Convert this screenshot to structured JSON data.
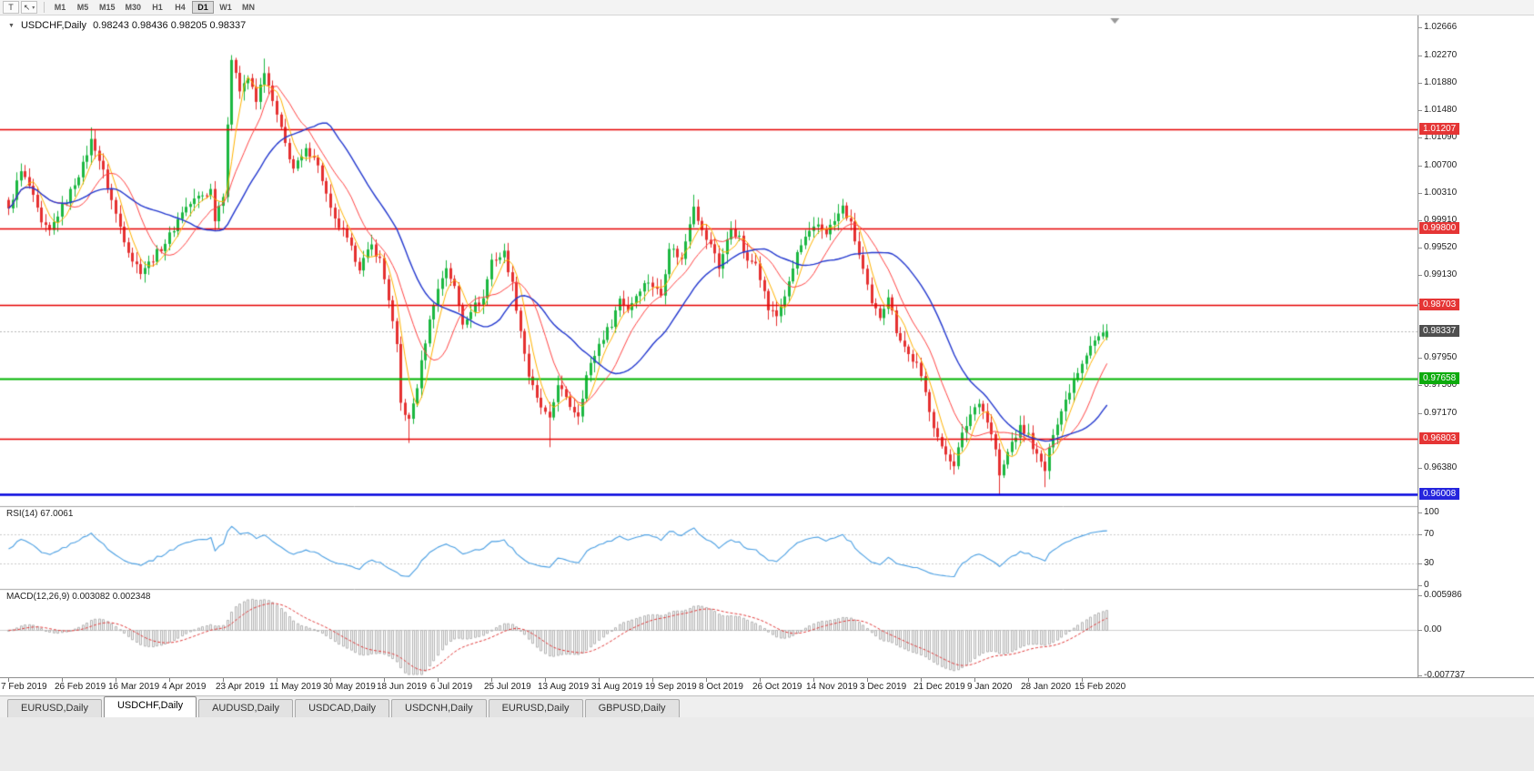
{
  "toolbar": {
    "tool_button_label": "T",
    "cursor_button_glyph": "↖",
    "cursor_button_caret": "▾",
    "timeframes": [
      {
        "label": "M1",
        "active": false
      },
      {
        "label": "M5",
        "active": false
      },
      {
        "label": "M15",
        "active": false
      },
      {
        "label": "M30",
        "active": false
      },
      {
        "label": "H1",
        "active": false
      },
      {
        "label": "H4",
        "active": false
      },
      {
        "label": "D1",
        "active": true
      },
      {
        "label": "W1",
        "active": false
      },
      {
        "label": "MN",
        "active": false
      }
    ]
  },
  "main_chart": {
    "collapse_glyph": "▼",
    "title": "USDCHF,Daily",
    "ohlc_text": "0.98243 0.98436 0.98205 0.98337",
    "axis_ticks": [
      "1.02666",
      "1.02270",
      "1.01880",
      "1.01480",
      "1.01090",
      "1.00700",
      "1.00310",
      "0.99910",
      "0.99520",
      "0.99130",
      "0.98740",
      "0.97950",
      "0.97560",
      "0.97170",
      "0.96380"
    ],
    "level_labels": [
      {
        "text": "1.01207",
        "bg": "#e53535"
      },
      {
        "text": "0.99800",
        "bg": "#e53535"
      },
      {
        "text": "0.98703",
        "bg": "#e53535"
      },
      {
        "text": "0.98337",
        "bg": "#4f4f4f"
      },
      {
        "text": "0.97658",
        "bg": "#0dab0d"
      },
      {
        "text": "0.96803",
        "bg": "#e53535"
      },
      {
        "text": "0.96008",
        "bg": "#2525dd"
      }
    ]
  },
  "rsi": {
    "label_name": "RSI(14)",
    "label_value": "67.0061",
    "axis": [
      "100",
      "70",
      "30",
      "0"
    ],
    "levels": [
      70,
      30
    ],
    "color": "#4a9fe3"
  },
  "macd": {
    "label_name": "MACD(12,26,9)",
    "label_value": "0.003082 0.002348",
    "axis_top": "0.005986",
    "axis_zero": "0.00",
    "axis_bottom": "-0.007737",
    "histogram_color": "#b2b2b2",
    "signal_color": "#e23a3a"
  },
  "time_axis": {
    "dates": [
      "7 Feb 2019",
      "26 Feb 2019",
      "16 Mar 2019",
      "4 Apr 2019",
      "23 Apr 2019",
      "11 May 2019",
      "30 May 2019",
      "18 Jun 2019",
      "6 Jul 2019",
      "25 Jul 2019",
      "13 Aug 2019",
      "31 Aug 2019",
      "19 Sep 2019",
      "8 Oct 2019",
      "26 Oct 2019",
      "14 Nov 2019",
      "3 Dec 2019",
      "21 Dec 2019",
      "9 Jan 2020",
      "28 Jan 2020",
      "15 Feb 2020"
    ]
  },
  "tabs": [
    {
      "label": "EURUSD,Daily",
      "active": false
    },
    {
      "label": "USDCHF,Daily",
      "active": true
    },
    {
      "label": "AUDUSD,Daily",
      "active": false
    },
    {
      "label": "USDCAD,Daily",
      "active": false
    },
    {
      "label": "USDCNH,Daily",
      "active": false
    },
    {
      "label": "EURUSD,Daily",
      "active": false
    },
    {
      "label": "GBPUSD,Daily",
      "active": false
    }
  ],
  "chart_data": {
    "type": "candlestick",
    "symbol": "USDCHF",
    "timeframe": "Daily",
    "date_range": [
      "7 Feb 2019",
      "15 Feb 2020"
    ],
    "current_ohlc": {
      "open": 0.98243,
      "high": 0.98436,
      "low": 0.98205,
      "close": 0.98337
    },
    "price_axis": {
      "min": 0.9584,
      "max": 1.02835
    },
    "num_candles": 267,
    "candles_per_date_tick": 13,
    "colors": {
      "bull": "#1cb841",
      "bear": "#e53030"
    },
    "close_anchors": [
      [
        0,
        1.0005
      ],
      [
        2,
        1.0045
      ],
      [
        3,
        1.006
      ],
      [
        5,
        1.004
      ],
      [
        7,
        1.0005
      ],
      [
        8,
        0.9985
      ],
      [
        10,
        0.9975
      ],
      [
        12,
        1.0
      ],
      [
        14,
        1.002
      ],
      [
        16,
        1.0045
      ],
      [
        18,
        1.007
      ],
      [
        20,
        1.0105
      ],
      [
        21,
        1.0095
      ],
      [
        23,
        1.006
      ],
      [
        26,
        1.0
      ],
      [
        28,
        0.9965
      ],
      [
        30,
        0.9935
      ],
      [
        32,
        0.992
      ],
      [
        34,
        0.993
      ],
      [
        36,
        0.9945
      ],
      [
        38,
        0.996
      ],
      [
        40,
        0.998
      ],
      [
        42,
        1.0005
      ],
      [
        44,
        1.0015
      ],
      [
        46,
        1.0025
      ],
      [
        48,
        1.003
      ],
      [
        49,
        1.0035
      ],
      [
        50,
        0.9995
      ],
      [
        52,
        1.003
      ],
      [
        53,
        1.013
      ],
      [
        54,
        1.0215
      ],
      [
        55,
        1.0205
      ],
      [
        56,
        1.018
      ],
      [
        58,
        1.0195
      ],
      [
        60,
        1.016
      ],
      [
        62,
        1.0205
      ],
      [
        63,
        1.018
      ],
      [
        65,
        1.014
      ],
      [
        67,
        1.01
      ],
      [
        69,
        1.0065
      ],
      [
        71,
        1.008
      ],
      [
        72,
        1.009
      ],
      [
        74,
        1.0085
      ],
      [
        76,
        1.005
      ],
      [
        78,
        1.0005
      ],
      [
        79,
        0.999
      ],
      [
        81,
        0.9975
      ],
      [
        83,
        0.995
      ],
      [
        85,
        0.9925
      ],
      [
        87,
        0.9945
      ],
      [
        88,
        0.9955
      ],
      [
        90,
        0.9935
      ],
      [
        92,
        0.988
      ],
      [
        94,
        0.981
      ],
      [
        95,
        0.973
      ],
      [
        97,
        0.9705
      ],
      [
        99,
        0.9755
      ],
      [
        101,
        0.982
      ],
      [
        103,
        0.9875
      ],
      [
        105,
        0.991
      ],
      [
        106,
        0.9925
      ],
      [
        108,
        0.9895
      ],
      [
        110,
        0.9845
      ],
      [
        112,
        0.9865
      ],
      [
        115,
        0.988
      ],
      [
        117,
        0.9935
      ],
      [
        119,
        0.994
      ],
      [
        120,
        0.9945
      ],
      [
        122,
        0.99
      ],
      [
        124,
        0.9835
      ],
      [
        126,
        0.977
      ],
      [
        128,
        0.9735
      ],
      [
        129,
        0.9725
      ],
      [
        131,
        0.9705
      ],
      [
        133,
        0.976
      ],
      [
        135,
        0.9735
      ],
      [
        137,
        0.972
      ],
      [
        138,
        0.9715
      ],
      [
        140,
        0.977
      ],
      [
        143,
        0.9815
      ],
      [
        146,
        0.9845
      ],
      [
        148,
        0.988
      ],
      [
        150,
        0.9865
      ],
      [
        153,
        0.9895
      ],
      [
        155,
        0.9905
      ],
      [
        158,
        0.9885
      ],
      [
        160,
        0.9955
      ],
      [
        163,
        0.9935
      ],
      [
        165,
        0.999
      ],
      [
        166,
        1.0015
      ],
      [
        168,
        0.9975
      ],
      [
        171,
        0.9945
      ],
      [
        172,
        0.9925
      ],
      [
        175,
        0.998
      ],
      [
        177,
        0.9965
      ],
      [
        179,
        0.993
      ],
      [
        181,
        0.9935
      ],
      [
        184,
        0.9865
      ],
      [
        186,
        0.9855
      ],
      [
        189,
        0.99
      ],
      [
        191,
        0.9945
      ],
      [
        193,
        0.9965
      ],
      [
        196,
        0.9985
      ],
      [
        198,
        0.9975
      ],
      [
        200,
        0.999
      ],
      [
        202,
        1.001
      ],
      [
        204,
        0.9985
      ],
      [
        207,
        0.992
      ],
      [
        209,
        0.987
      ],
      [
        211,
        0.9855
      ],
      [
        213,
        0.9885
      ],
      [
        215,
        0.9835
      ],
      [
        218,
        0.98
      ],
      [
        220,
        0.9785
      ],
      [
        222,
        0.9745
      ],
      [
        224,
        0.97
      ],
      [
        226,
        0.9665
      ],
      [
        229,
        0.9645
      ],
      [
        231,
        0.9685
      ],
      [
        233,
        0.9715
      ],
      [
        235,
        0.9735
      ],
      [
        237,
        0.9705
      ],
      [
        239,
        0.9665
      ],
      [
        240,
        0.9625
      ],
      [
        242,
        0.966
      ],
      [
        243,
        0.9675
      ],
      [
        245,
        0.9695
      ],
      [
        247,
        0.9685
      ],
      [
        249,
        0.9655
      ],
      [
        251,
        0.9635
      ],
      [
        253,
        0.969
      ],
      [
        256,
        0.9735
      ],
      [
        258,
        0.9765
      ],
      [
        260,
        0.979
      ],
      [
        262,
        0.9815
      ],
      [
        264,
        0.9825
      ],
      [
        266,
        0.98337
      ]
    ],
    "wick_overrides": {
      "20": {
        "high": 1.0124
      },
      "54": {
        "high": 1.0227
      },
      "62": {
        "high": 1.0222
      },
      "97": {
        "low": 0.9674
      },
      "131": {
        "low": 0.9668
      },
      "166": {
        "high": 1.0028
      },
      "202": {
        "high": 1.0022
      },
      "229": {
        "low": 0.9629
      },
      "240": {
        "low": 0.9601
      },
      "251": {
        "low": 0.9611
      }
    },
    "horizontal_levels": [
      {
        "price": 1.01207,
        "color": "#e60000",
        "width": 1.3
      },
      {
        "price": 0.998,
        "color": "#e60000",
        "width": 1.3
      },
      {
        "price": 0.98703,
        "color": "#e60000",
        "width": 1.3
      },
      {
        "price": 0.97658,
        "color": "#00b400",
        "width": 2
      },
      {
        "price": 0.96803,
        "color": "#e60000",
        "width": 1.3
      },
      {
        "price": 0.96008,
        "color": "#0000dd",
        "width": 2.5
      }
    ],
    "current_price_line": {
      "price": 0.98337,
      "style": "dashed",
      "color": "#b8b8b8"
    },
    "moving_averages": [
      {
        "name": "ma-fast",
        "period": 5,
        "color": "#ffb300",
        "width": 1
      },
      {
        "name": "ma-mid",
        "period": 12,
        "color": "#ff4545",
        "width": 1
      },
      {
        "name": "ma-slow",
        "period": 25,
        "color": "#2338cf",
        "width": 1.4
      }
    ],
    "indicators": {
      "rsi": {
        "period": 14,
        "current": 67.0061
      },
      "macd": {
        "fast": 12,
        "slow": 26,
        "signal": 9,
        "current_macd": 0.003082,
        "current_signal": 0.002348
      }
    }
  }
}
